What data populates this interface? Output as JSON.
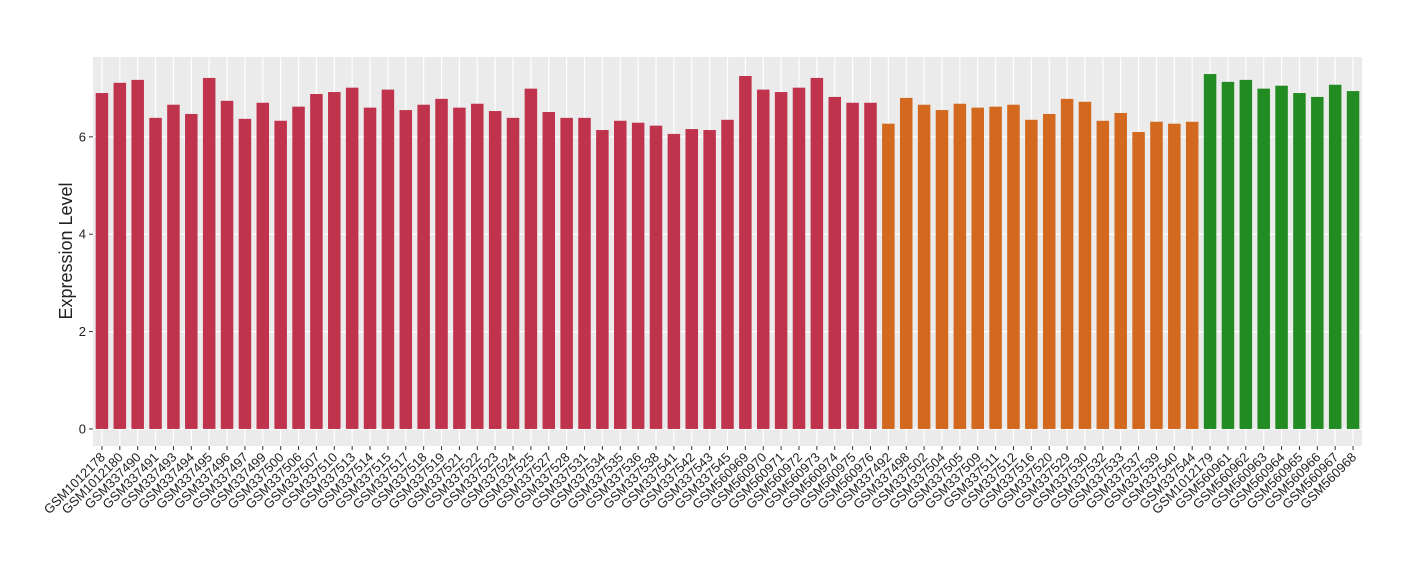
{
  "chart_data": {
    "type": "bar",
    "y_label": "Expression Level",
    "categories": [
      "GSM1012178",
      "GSM1012180",
      "GSM337490",
      "GSM337491",
      "GSM337493",
      "GSM337494",
      "GSM337495",
      "GSM337496",
      "GSM337497",
      "GSM337499",
      "GSM337500",
      "GSM337506",
      "GSM337507",
      "GSM337510",
      "GSM337513",
      "GSM337514",
      "GSM337515",
      "GSM337517",
      "GSM337518",
      "GSM337519",
      "GSM337521",
      "GSM337522",
      "GSM337523",
      "GSM337524",
      "GSM337525",
      "GSM337527",
      "GSM337528",
      "GSM337531",
      "GSM337534",
      "GSM337535",
      "GSM337536",
      "GSM337538",
      "GSM337541",
      "GSM337542",
      "GSM337543",
      "GSM337545",
      "GSM560969",
      "GSM560970",
      "GSM560971",
      "GSM560972",
      "GSM560973",
      "GSM560974",
      "GSM560975",
      "GSM560976",
      "GSM337492",
      "GSM337498",
      "GSM337502",
      "GSM337504",
      "GSM337505",
      "GSM337509",
      "GSM337511",
      "GSM337512",
      "GSM337516",
      "GSM337520",
      "GSM337529",
      "GSM337530",
      "GSM337532",
      "GSM337533",
      "GSM337537",
      "GSM337539",
      "GSM337540",
      "GSM337544",
      "GSM1012179",
      "GSM560961",
      "GSM560962",
      "GSM560963",
      "GSM560964",
      "GSM560965",
      "GSM560966",
      "GSM560967",
      "GSM560968"
    ],
    "values": [
      6.9,
      7.11,
      7.17,
      6.39,
      6.66,
      6.47,
      7.21,
      6.74,
      6.37,
      6.7,
      6.33,
      6.62,
      6.88,
      6.92,
      7.01,
      6.6,
      6.97,
      6.55,
      6.66,
      6.78,
      6.6,
      6.68,
      6.53,
      6.39,
      6.99,
      6.51,
      6.39,
      6.39,
      6.14,
      6.33,
      6.29,
      6.23,
      6.06,
      6.16,
      6.14,
      6.35,
      7.25,
      6.97,
      6.92,
      7.01,
      7.21,
      6.82,
      6.7,
      6.7,
      6.27,
      6.8,
      6.66,
      6.55,
      6.68,
      6.6,
      6.62,
      6.66,
      6.35,
      6.47,
      6.78,
      6.72,
      6.33,
      6.49,
      6.1,
      6.31,
      6.27,
      6.31,
      7.29,
      7.13,
      7.17,
      6.99,
      7.05,
      6.9,
      6.82,
      7.07,
      6.94
    ],
    "colors": [
      "#c0334d",
      "#c0334d",
      "#c0334d",
      "#c0334d",
      "#c0334d",
      "#c0334d",
      "#c0334d",
      "#c0334d",
      "#c0334d",
      "#c0334d",
      "#c0334d",
      "#c0334d",
      "#c0334d",
      "#c0334d",
      "#c0334d",
      "#c0334d",
      "#c0334d",
      "#c0334d",
      "#c0334d",
      "#c0334d",
      "#c0334d",
      "#c0334d",
      "#c0334d",
      "#c0334d",
      "#c0334d",
      "#c0334d",
      "#c0334d",
      "#c0334d",
      "#c0334d",
      "#c0334d",
      "#c0334d",
      "#c0334d",
      "#c0334d",
      "#c0334d",
      "#c0334d",
      "#c0334d",
      "#c0334d",
      "#c0334d",
      "#c0334d",
      "#c0334d",
      "#c0334d",
      "#c0334d",
      "#c0334d",
      "#c0334d",
      "#d2691e",
      "#d2691e",
      "#d2691e",
      "#d2691e",
      "#d2691e",
      "#d2691e",
      "#d2691e",
      "#d2691e",
      "#d2691e",
      "#d2691e",
      "#d2691e",
      "#d2691e",
      "#d2691e",
      "#d2691e",
      "#d2691e",
      "#d2691e",
      "#d2691e",
      "#d2691e",
      "#228b22",
      "#228b22",
      "#228b22",
      "#228b22",
      "#228b22",
      "#228b22",
      "#228b22",
      "#228b22",
      "#228b22"
    ],
    "ylim": [
      -0.35,
      7.64
    ],
    "yticks": [
      0,
      2,
      4,
      6
    ],
    "grid": true
  }
}
